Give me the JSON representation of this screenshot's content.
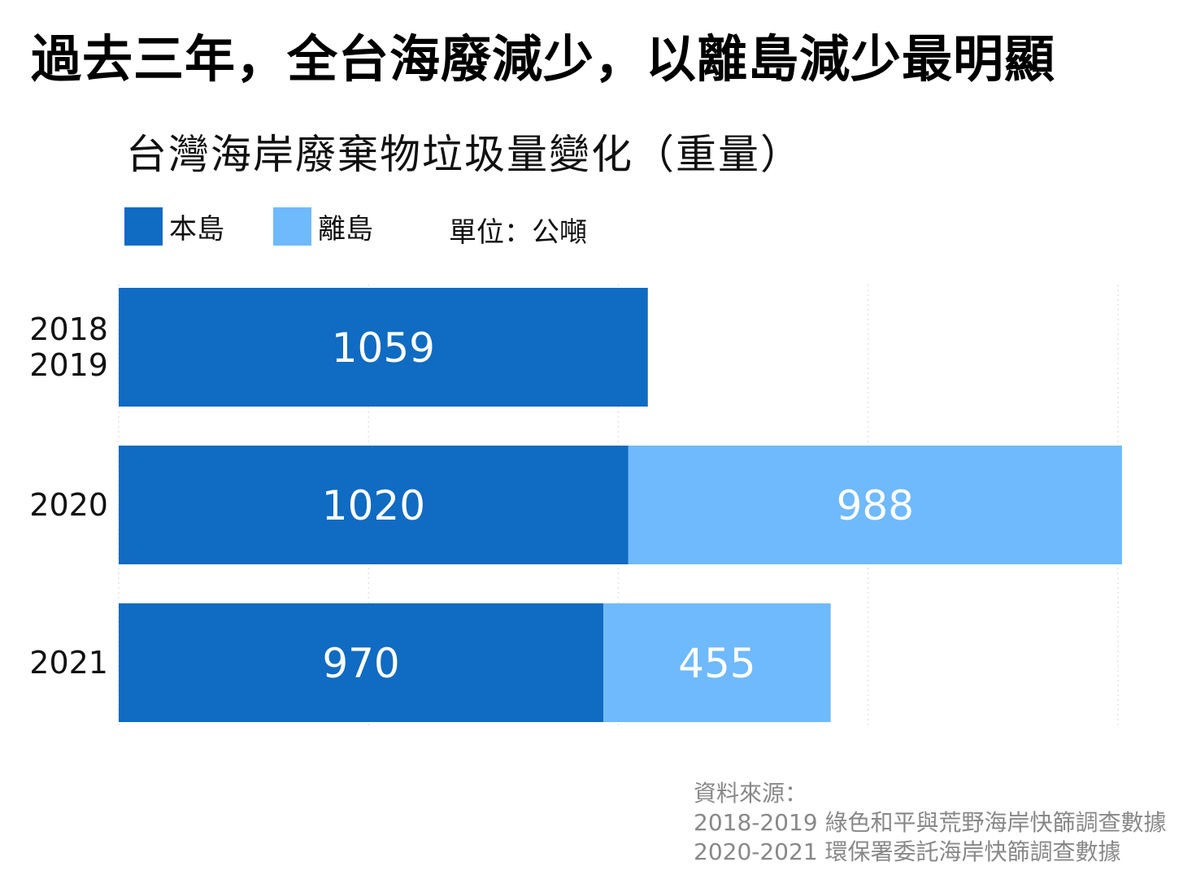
{
  "headline": "過去三年，全台海廢減少，以離島減少最明顯",
  "colors": {
    "main_island": "#106bc2",
    "outlying_islands": "#6fb9fd",
    "bar_text": "#ffffff",
    "grid": "#e3e3e3"
  },
  "chart_data": {
    "type": "bar",
    "orientation": "horizontal",
    "stacked": true,
    "title": "台灣海岸廢棄物垃圾量變化（重量）",
    "unit": "單位：公噸",
    "categories": [
      "2018\n2019",
      "2020",
      "2021"
    ],
    "series": [
      {
        "name": "本島",
        "values": [
          1059,
          1020,
          970
        ]
      },
      {
        "name": "離島",
        "values": [
          null,
          988,
          455
        ]
      }
    ],
    "xlim": [
      0,
      2000
    ],
    "grid": true,
    "legend_position": "top-left"
  },
  "source": {
    "heading": "資料來源：",
    "lines": [
      "2018-2019 綠色和平與荒野海岸快篩調查數據",
      "2020-2021 環保署委託海岸快篩調查數據"
    ]
  }
}
